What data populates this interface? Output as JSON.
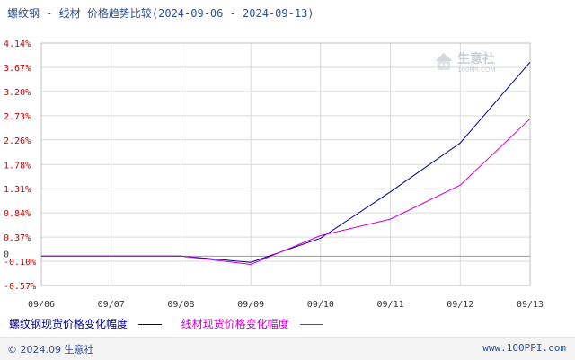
{
  "chart_data": {
    "type": "line",
    "title": "螺纹钢 - 线材 价格趋势比较(2024-09-06 - 2024-09-13)",
    "categories": [
      "09/06",
      "09/07",
      "09/08",
      "09/09",
      "09/10",
      "09/11",
      "09/12",
      "09/13"
    ],
    "y_ticks": [
      "4.14%",
      "3.67%",
      "3.20%",
      "2.73%",
      "2.26%",
      "1.78%",
      "1.31%",
      "0.84%",
      "0.37%",
      "-0.10%",
      "-0.57%"
    ],
    "y_tick_values": [
      4.14,
      3.67,
      3.2,
      2.73,
      2.26,
      1.78,
      1.31,
      0.84,
      0.37,
      -0.1,
      -0.57
    ],
    "zero_label": "0",
    "ylim": [
      -0.57,
      4.14
    ],
    "series": [
      {
        "name": "螺纹钢现货价格变化幅度",
        "color": "#00008b",
        "values": [
          0,
          0,
          0,
          -0.12,
          0.35,
          1.25,
          2.2,
          3.77
        ]
      },
      {
        "name": "线材现货价格变化幅度",
        "color": "#cc00cc",
        "values": [
          0,
          0,
          0,
          -0.16,
          0.4,
          0.72,
          1.38,
          2.67
        ]
      }
    ],
    "grid": true,
    "legend_position": "bottom-left"
  },
  "footer": {
    "copyright": "© 2024.09 生意社",
    "site": "www.100PPI.com"
  },
  "watermark": {
    "brand": "生意社",
    "site": "100PPI.COM"
  }
}
